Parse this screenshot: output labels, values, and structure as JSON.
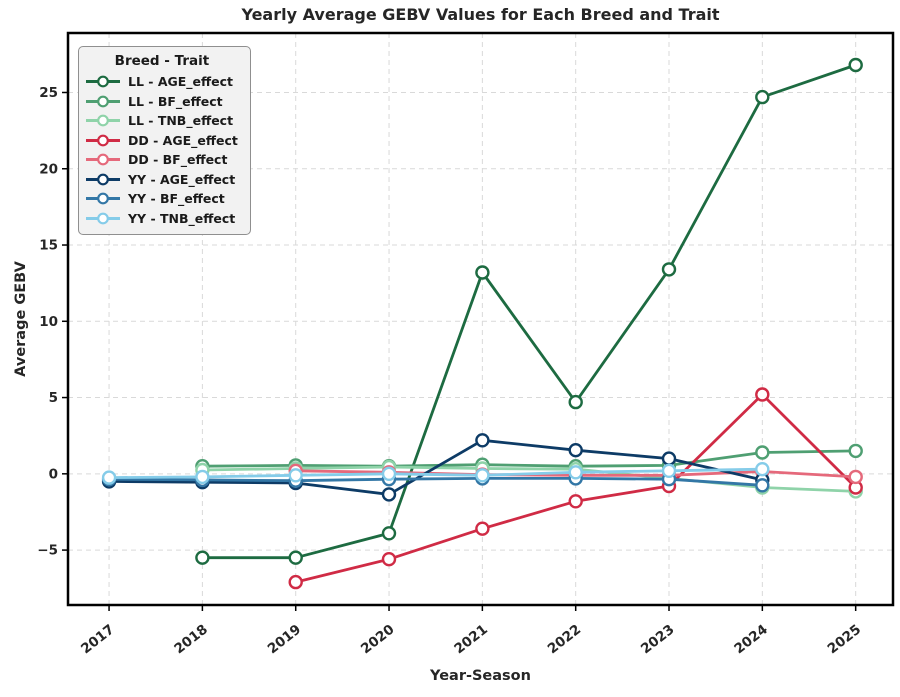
{
  "chart_data": {
    "type": "line",
    "title": "Yearly Average GEBV Values for Each Breed and Trait",
    "xlabel": "Year-Season",
    "ylabel": "Average GEBV",
    "legend_title": "Breed - Trait",
    "legend_position": "upper-left",
    "grid": true,
    "x": [
      2017,
      2018,
      2019,
      2020,
      2021,
      2022,
      2023,
      2024,
      2025
    ],
    "x_tick_labels": [
      "2017",
      "2018",
      "2019",
      "2020",
      "2021",
      "2022",
      "2023",
      "2024",
      "2025"
    ],
    "y_ticks": [
      -5,
      0,
      5,
      10,
      15,
      20,
      25
    ],
    "y_tick_labels": [
      "−5",
      "0",
      "5",
      "10",
      "15",
      "20",
      "25"
    ],
    "xlim": [
      2016.56,
      2025.4
    ],
    "ylim": [
      -8.6,
      28.9
    ],
    "series": [
      {
        "name": "LL - AGE_effect",
        "color": "#1d6b41",
        "values": [
          null,
          -5.5,
          -5.5,
          -3.9,
          13.2,
          4.7,
          13.4,
          24.7,
          26.8
        ]
      },
      {
        "name": "LL - BF_effect",
        "color": "#4f9f72",
        "values": [
          null,
          0.5,
          0.55,
          0.5,
          0.6,
          0.5,
          0.55,
          1.4,
          1.5
        ]
      },
      {
        "name": "LL - TNB_effect",
        "color": "#8fd3a9",
        "values": [
          null,
          0.25,
          0.35,
          0.45,
          0.35,
          0.3,
          -0.3,
          -0.9,
          -1.15
        ]
      },
      {
        "name": "DD - AGE_effect",
        "color": "#d02b45",
        "values": [
          null,
          null,
          -7.1,
          -5.6,
          -3.6,
          -1.8,
          -0.8,
          5.2,
          -0.9
        ]
      },
      {
        "name": "DD - BF_effect",
        "color": "#e5697b",
        "values": [
          null,
          null,
          0.2,
          0.1,
          -0.05,
          -0.1,
          -0.1,
          0.15,
          -0.2
        ]
      },
      {
        "name": "YY - AGE_effect",
        "color": "#0d3b66",
        "values": [
          -0.5,
          -0.55,
          -0.6,
          -1.35,
          2.2,
          1.55,
          1.0,
          -0.4,
          null
        ]
      },
      {
        "name": "YY - BF_effect",
        "color": "#3377a6",
        "values": [
          -0.35,
          -0.4,
          -0.45,
          -0.35,
          -0.3,
          -0.3,
          -0.35,
          -0.75,
          null
        ]
      },
      {
        "name": "YY - TNB_effect",
        "color": "#85cce9",
        "values": [
          -0.25,
          -0.2,
          -0.1,
          0.0,
          -0.1,
          0.1,
          0.2,
          0.3,
          null
        ]
      }
    ],
    "style": {
      "background": "#ffffff",
      "grid_color": "#d9d9d9",
      "frame_color": "#000000",
      "text_color": "#262626",
      "legend_background": "#f2f2f2",
      "marker_fill": "#ffffff"
    }
  }
}
